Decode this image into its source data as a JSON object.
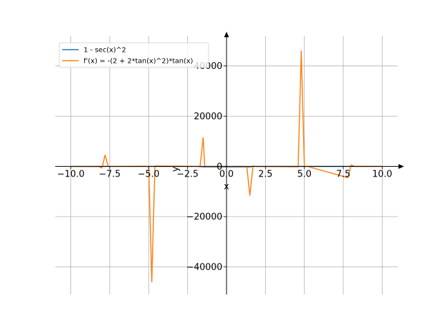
{
  "chart_data": {
    "type": "line",
    "title": "",
    "xlabel": "x",
    "ylabel": "y",
    "xlim": [
      -11.0,
      11.0
    ],
    "ylim": [
      -51000,
      52000
    ],
    "grid": true,
    "legend_position": "top-left",
    "x_ticks": [
      {
        "value": -10.0,
        "label": "−10.0"
      },
      {
        "value": -7.5,
        "label": "−7.5"
      },
      {
        "value": -5.0,
        "label": "−5.0"
      },
      {
        "value": -2.5,
        "label": "−2.5"
      },
      {
        "value": 0.0,
        "label": "0.0"
      },
      {
        "value": 2.5,
        "label": "2.5"
      },
      {
        "value": 5.0,
        "label": "5.0"
      },
      {
        "value": 7.5,
        "label": "7.5"
      },
      {
        "value": 10.0,
        "label": "10.0"
      }
    ],
    "y_ticks": [
      {
        "value": -40000,
        "label": "−40000"
      },
      {
        "value": -20000,
        "label": "−20000"
      },
      {
        "value": 0,
        "label": "0"
      },
      {
        "value": 20000,
        "label": "20000"
      },
      {
        "value": 40000,
        "label": "40000"
      }
    ],
    "series": [
      {
        "name": "1 - sec(x)^2",
        "color": "#1f77b4",
        "x": [
          -10.0,
          -8.0,
          -7.8,
          -5.0,
          -4.8,
          -1.7,
          -1.5,
          1.5,
          1.7,
          4.8,
          5.0,
          7.8,
          8.0,
          10.0
        ],
        "y": [
          -2,
          -30,
          -20,
          -10,
          -15,
          -10,
          -200,
          -200,
          -10,
          -15,
          -10,
          -20,
          -30,
          -2
        ]
      },
      {
        "name": "f'(x) = -(2 + 2*tan(x)^2)*tan(x)",
        "color": "#ff7f0e",
        "x": [
          -10.0,
          -8.2,
          -8.0,
          -7.8,
          -7.6,
          -5.2,
          -5.0,
          -4.8,
          -4.6,
          -1.8,
          -1.7,
          -1.5,
          -1.4,
          1.3,
          1.5,
          1.7,
          1.9,
          4.6,
          4.8,
          5.0,
          5.2,
          7.8,
          8.0,
          8.2,
          10.0
        ],
        "y": [
          -5,
          -100,
          -600,
          4500,
          0,
          100,
          0,
          -46000,
          200,
          0,
          -200,
          11500,
          0,
          0,
          -11500,
          200,
          0,
          -200,
          46000,
          0,
          0,
          -4500,
          600,
          100,
          5
        ]
      }
    ]
  }
}
